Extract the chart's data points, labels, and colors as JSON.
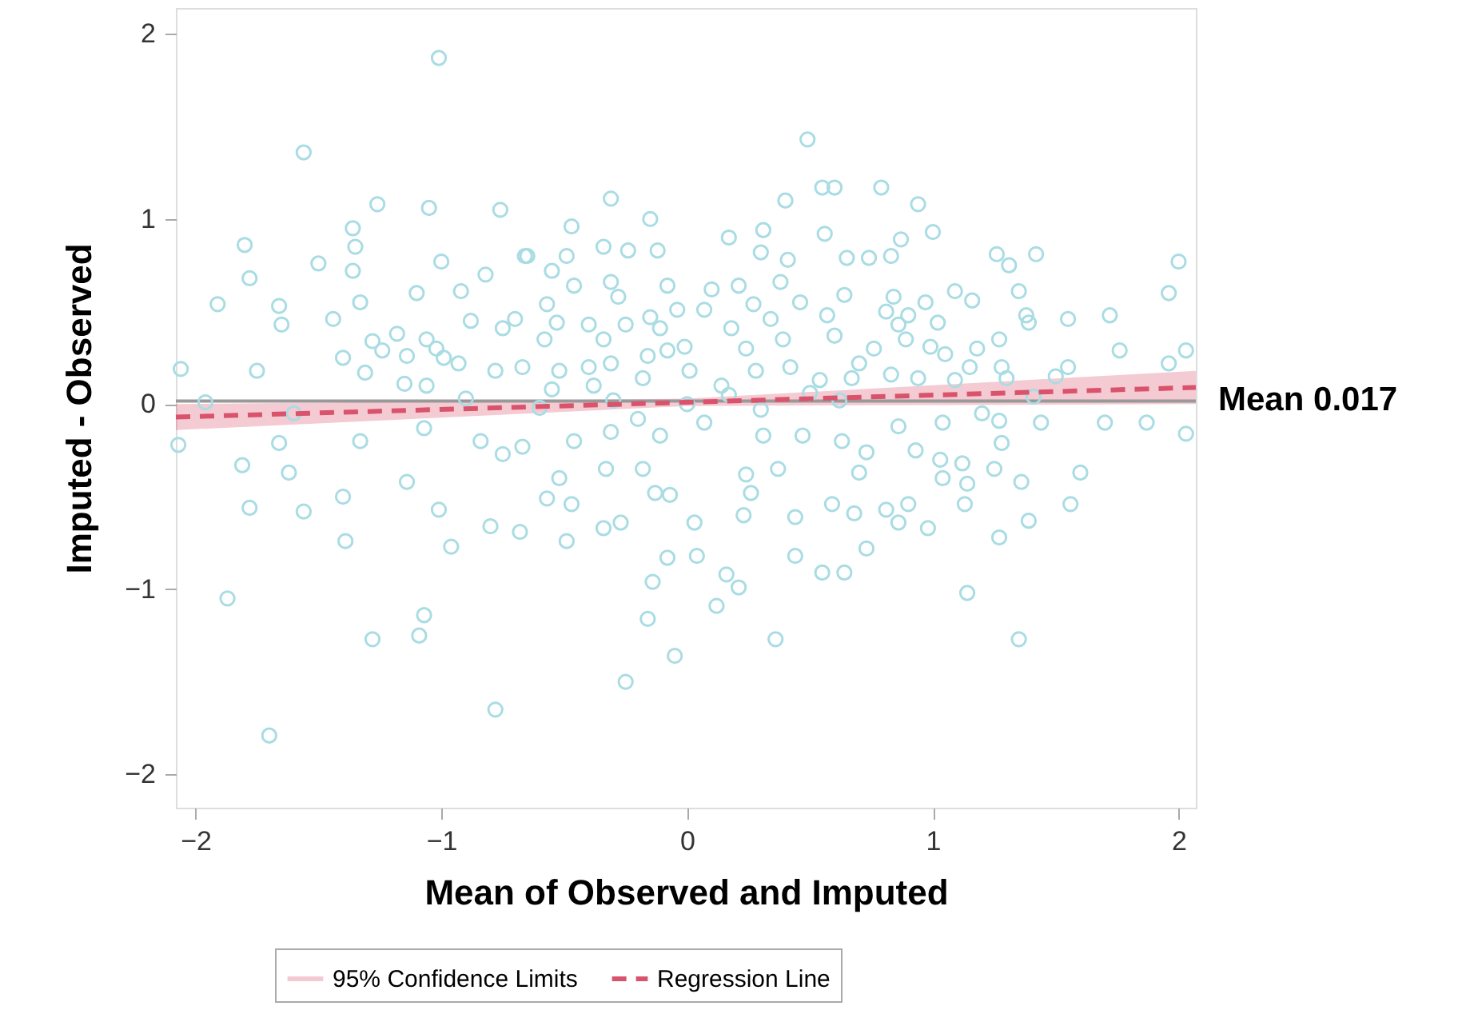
{
  "chart_data": {
    "type": "scatter",
    "xlabel": "Mean of Observed and Imputed",
    "ylabel": "Imputed - Observed",
    "xlim": [
      -2.08,
      2.07
    ],
    "ylim": [
      -2.18,
      2.14
    ],
    "xticks": [
      -2,
      -1,
      0,
      1,
      2
    ],
    "yticks": [
      -2,
      -1,
      0,
      1,
      2
    ],
    "grid": false,
    "legend": "bottom",
    "annotations": [
      "95% Confidence Limits"
    ],
    "series": [
      {
        "marker": "circle",
        "color": "#a9dce3",
        "x": [
          -1.01,
          -1.56,
          0.49,
          -1.26,
          -1.05,
          -0.31,
          -0.15,
          0.79,
          0.94,
          -1.8,
          -1.78,
          -1.91,
          -1.5,
          -1.36,
          -1.35,
          -0.47,
          -0.65,
          0.3,
          0.6,
          0.4,
          0.55,
          1.0,
          1.26,
          1.42,
          2.0,
          1.96,
          1.72,
          1.76,
          2.03,
          2.03,
          1.87,
          -2.06,
          -2.07,
          -1.96,
          -1.7,
          -1.87,
          -1.28,
          -1.09,
          -1.07,
          -0.78,
          -0.25,
          -0.05,
          -0.16,
          0.36,
          0.12,
          0.21,
          0.16,
          -0.14,
          1.14,
          1.35,
          1.27,
          1.39,
          1.56,
          1.6,
          1.36,
          1.13,
          0.98,
          0.73,
          0.86,
          -1.39,
          -0.96,
          -0.8,
          -1.78,
          -1.56,
          -1.4,
          -1.81,
          -1.62,
          -1.14,
          -1.01,
          -1.66,
          -1.33,
          -1.07,
          -0.84,
          -0.75,
          -0.68,
          -0.49,
          -0.34,
          -0.27,
          -0.08,
          0.04,
          0.03,
          0.44,
          0.55,
          0.64,
          0.68,
          0.59,
          0.44,
          -0.47,
          -0.57,
          -0.13,
          -0.07,
          0.23,
          0.26,
          -0.67,
          -0.46,
          -0.31,
          -0.11,
          0.07,
          0.31,
          0.47,
          0.63,
          -0.18,
          -0.52,
          -0.33,
          0.37,
          0.24,
          0.17,
          0.31,
          0.56,
          -0.66,
          -0.49,
          -0.34,
          -0.24,
          -0.12,
          0.41,
          0.65,
          -0.55,
          -0.46,
          -0.31,
          -0.08,
          0.1,
          0.21,
          0.38,
          -0.57,
          -0.28,
          -0.04,
          0.07,
          0.27,
          0.46,
          0.64,
          -0.7,
          -0.53,
          -0.4,
          -0.25,
          -0.15,
          0.18,
          0.34,
          0.57,
          -0.58,
          -0.34,
          -0.11,
          -0.01,
          0.24,
          0.39,
          0.6,
          -0.67,
          -0.52,
          -0.4,
          -0.31,
          -0.16,
          -0.08,
          0.01,
          0.14,
          0.28,
          0.42,
          0.54,
          0.67,
          -0.55,
          -0.38,
          -0.18,
          -1.66,
          -1.65,
          -1.36,
          -1.33,
          -1.44,
          -0.76,
          -1.0,
          -1.1,
          -0.92,
          -0.82,
          -0.88,
          -0.75,
          -1.18,
          -1.28,
          -1.24,
          -1.06,
          -1.02,
          -0.99,
          -0.93,
          -1.14,
          -1.4,
          -1.75,
          -1.31,
          -1.15,
          -1.06,
          -0.78,
          0.74,
          0.83,
          0.87,
          1.31,
          1.09,
          1.16,
          0.97,
          1.02,
          0.84,
          0.81,
          0.9,
          0.86,
          1.35,
          1.38,
          1.39,
          1.55,
          1.96,
          1.55,
          1.5,
          1.27,
          1.18,
          1.28,
          1.15,
          1.05,
          0.99,
          0.89,
          0.76,
          0.7,
          0.83,
          0.94,
          1.09,
          1.3,
          1.41,
          0.86,
          1.04,
          1.27,
          1.44,
          1.28,
          0.93,
          1.03,
          1.12,
          1.25,
          0.73,
          0.7,
          1.04,
          1.14,
          0.9,
          0.81,
          -1.6,
          -0.9,
          -0.6,
          -0.3,
          0.0,
          0.3,
          0.62,
          1.2,
          1.7,
          0.17,
          -0.2,
          0.5
        ],
        "values": [
          1.87,
          1.36,
          1.43,
          1.08,
          1.06,
          1.11,
          1.0,
          1.17,
          1.08,
          0.86,
          0.68,
          0.54,
          0.76,
          0.95,
          0.85,
          0.96,
          0.8,
          0.82,
          1.17,
          1.1,
          1.17,
          0.93,
          0.81,
          0.81,
          0.77,
          0.6,
          0.48,
          0.29,
          0.29,
          -0.16,
          -0.1,
          0.19,
          -0.22,
          0.01,
          -1.79,
          -1.05,
          -1.27,
          -1.25,
          -1.14,
          -1.65,
          -1.5,
          -1.36,
          -1.16,
          -1.27,
          -1.09,
          -0.99,
          -0.92,
          -0.96,
          -1.02,
          -1.27,
          -0.72,
          -0.63,
          -0.54,
          -0.37,
          -0.42,
          -0.54,
          -0.67,
          -0.78,
          -0.64,
          -0.74,
          -0.77,
          -0.66,
          -0.56,
          -0.58,
          -0.5,
          -0.33,
          -0.37,
          -0.42,
          -0.57,
          -0.21,
          -0.2,
          -0.13,
          -0.2,
          -0.27,
          -0.69,
          -0.74,
          -0.67,
          -0.64,
          -0.83,
          -0.82,
          -0.64,
          -0.82,
          -0.91,
          -0.91,
          -0.59,
          -0.54,
          -0.61,
          -0.54,
          -0.51,
          -0.48,
          -0.49,
          -0.6,
          -0.48,
          -0.23,
          -0.2,
          -0.15,
          -0.17,
          -0.1,
          -0.17,
          -0.17,
          -0.2,
          -0.35,
          -0.4,
          -0.35,
          -0.35,
          -0.38,
          0.9,
          0.94,
          0.92,
          0.8,
          0.8,
          0.85,
          0.83,
          0.83,
          0.78,
          0.79,
          0.72,
          0.64,
          0.66,
          0.64,
          0.62,
          0.64,
          0.66,
          0.54,
          0.58,
          0.51,
          0.51,
          0.54,
          0.55,
          0.59,
          0.46,
          0.44,
          0.43,
          0.43,
          0.47,
          0.41,
          0.46,
          0.48,
          0.35,
          0.35,
          0.41,
          0.31,
          0.3,
          0.35,
          0.37,
          0.2,
          0.18,
          0.2,
          0.22,
          0.26,
          0.29,
          0.18,
          0.1,
          0.18,
          0.2,
          0.13,
          0.14,
          0.08,
          0.1,
          0.14,
          0.53,
          0.43,
          0.72,
          0.55,
          0.46,
          1.05,
          0.77,
          0.6,
          0.61,
          0.7,
          0.45,
          0.41,
          0.38,
          0.34,
          0.29,
          0.35,
          0.3,
          0.25,
          0.22,
          0.26,
          0.25,
          0.18,
          0.17,
          0.11,
          0.1,
          0.18,
          0.79,
          0.8,
          0.89,
          0.75,
          0.61,
          0.56,
          0.55,
          0.44,
          0.58,
          0.5,
          0.48,
          0.43,
          0.61,
          0.48,
          0.44,
          0.46,
          0.22,
          0.2,
          0.15,
          0.35,
          0.3,
          0.2,
          0.2,
          0.27,
          0.31,
          0.35,
          0.3,
          0.22,
          0.16,
          0.14,
          0.13,
          0.14,
          0.04,
          -0.12,
          -0.1,
          -0.09,
          -0.1,
          -0.21,
          -0.25,
          -0.3,
          -0.32,
          -0.35,
          -0.26,
          -0.37,
          -0.4,
          -0.43,
          -0.54,
          -0.57,
          -0.05,
          0.03,
          -0.02,
          0.02,
          0.0,
          -0.03,
          0.02,
          -0.05,
          -0.1,
          0.05,
          -0.08,
          0.06
        ]
      },
      {
        "type": "line",
        "name": "Regression Line",
        "color": "#d9536c",
        "line_style": "dashed",
        "x": [
          -2.08,
          0,
          2.07
        ],
        "values": [
          -0.07,
          0.01,
          0.09
        ],
        "lower": [
          -0.14,
          -0.01,
          0.0
        ],
        "upper": [
          0.0,
          0.03,
          0.18
        ]
      }
    ],
    "ref_lines": [
      {
        "axis": "y",
        "value": 0.017,
        "label": "Mean 0.017",
        "color": "#999999"
      }
    ]
  }
}
